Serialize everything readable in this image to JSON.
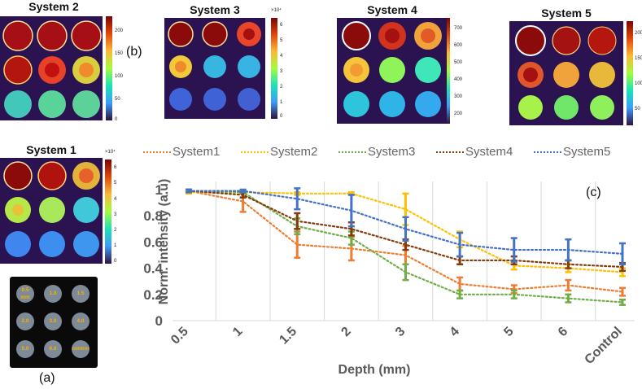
{
  "figure": {
    "panel_labels": {
      "a": "(a)",
      "b": "(b)",
      "c": "(c)"
    },
    "heatmaps": [
      {
        "title": "System 2",
        "multiplier": "",
        "ticks": [
          "200",
          "150",
          "100",
          "50",
          "0"
        ]
      },
      {
        "title": "System 3",
        "multiplier": "×10⁴",
        "ticks": [
          "6",
          "5",
          "4",
          "3",
          "2",
          "1",
          "0"
        ]
      },
      {
        "title": "System 4",
        "multiplier": "",
        "ticks": [
          "700",
          "600",
          "500",
          "400",
          "300",
          "200"
        ]
      },
      {
        "title": "System 5",
        "multiplier": "",
        "ticks": [
          "200",
          "150",
          "100",
          "50"
        ]
      },
      {
        "title": "System 1",
        "multiplier": "×10⁴",
        "ticks": [
          "6",
          "5",
          "4",
          "3",
          "2",
          "1",
          "0"
        ]
      }
    ],
    "phantom_labels": [
      "0.5 mm",
      "1.0",
      "1.5",
      "2.0",
      "3.0",
      "4.0",
      "5.0",
      "6.0",
      "control"
    ]
  },
  "chart_data": {
    "type": "line",
    "title": "",
    "xlabel": "Depth (mm)",
    "ylabel": "Norm. intensity (a.u)",
    "categories": [
      "0.5",
      "1",
      "1.5",
      "2",
      "3",
      "4",
      "5",
      "6",
      "Control"
    ],
    "ylim": [
      0,
      1
    ],
    "yticks": [
      "0",
      "0.2",
      "0.4",
      "0.6",
      "0.8",
      "1"
    ],
    "grid": "vertical",
    "legend_position": "top",
    "series": [
      {
        "name": "System1",
        "color": "#ed7d31",
        "values": [
          0.99,
          0.91,
          0.58,
          0.55,
          0.5,
          0.28,
          0.24,
          0.27,
          0.22
        ],
        "errors": [
          0.01,
          0.08,
          0.1,
          0.09,
          0.07,
          0.05,
          0.03,
          0.04,
          0.03
        ]
      },
      {
        "name": "System2",
        "color": "#ffc000",
        "values": [
          0.98,
          0.98,
          0.97,
          0.97,
          0.85,
          0.62,
          0.42,
          0.4,
          0.37
        ],
        "errors": [
          0.01,
          0.01,
          0.01,
          0.01,
          0.12,
          0.06,
          0.03,
          0.03,
          0.03
        ]
      },
      {
        "name": "System3",
        "color": "#70ad47",
        "values": [
          0.99,
          0.98,
          0.72,
          0.63,
          0.37,
          0.2,
          0.2,
          0.17,
          0.14
        ],
        "errors": [
          0.01,
          0.01,
          0.06,
          0.05,
          0.06,
          0.03,
          0.03,
          0.03,
          0.02
        ]
      },
      {
        "name": "System4",
        "color": "#843c0c",
        "values": [
          0.99,
          0.96,
          0.76,
          0.7,
          0.58,
          0.46,
          0.46,
          0.43,
          0.41
        ],
        "errors": [
          0.01,
          0.02,
          0.06,
          0.05,
          0.04,
          0.03,
          0.03,
          0.03,
          0.03
        ]
      },
      {
        "name": "System5",
        "color": "#4472c4",
        "values": [
          0.99,
          0.99,
          0.93,
          0.84,
          0.7,
          0.58,
          0.54,
          0.54,
          0.51
        ],
        "errors": [
          0.01,
          0.01,
          0.08,
          0.12,
          0.09,
          0.09,
          0.09,
          0.08,
          0.08
        ]
      }
    ]
  }
}
